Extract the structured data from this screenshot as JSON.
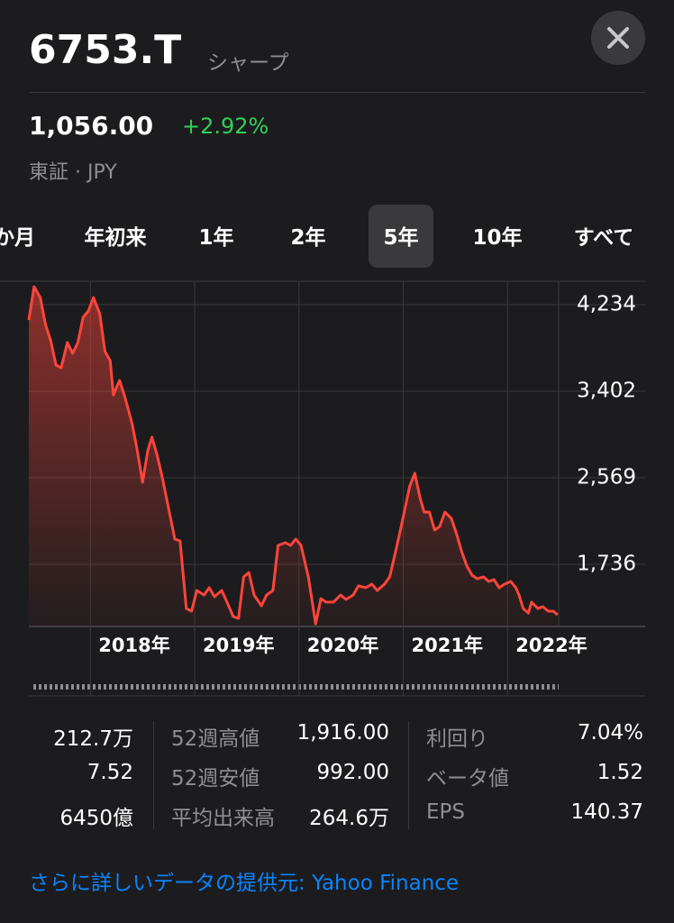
{
  "header": {
    "symbol": "6753.T",
    "name": "シャープ",
    "price": "1,056.00",
    "change": "+2.92%",
    "exchange": "東証 · JPY"
  },
  "tabs": [
    "か月",
    "年初来",
    "1年",
    "2年",
    "5年",
    "10年",
    "すべて"
  ],
  "chart_data": {
    "type": "line",
    "color": "#ff453a",
    "x": [
      2017.41,
      2017.46,
      2017.52,
      2017.57,
      2017.62,
      2017.67,
      2017.72,
      2017.78,
      2017.83,
      2017.88,
      2017.93,
      2017.98,
      2018.03,
      2018.09,
      2018.14,
      2018.19,
      2018.22,
      2018.28,
      2018.33,
      2018.4,
      2018.45,
      2018.5,
      2018.55,
      2018.59,
      2018.64,
      2018.69,
      2018.76,
      2018.81,
      2018.86,
      2018.92,
      2018.97,
      2019.02,
      2019.09,
      2019.14,
      2019.19,
      2019.26,
      2019.31,
      2019.37,
      2019.42,
      2019.47,
      2019.52,
      2019.57,
      2019.64,
      2019.69,
      2019.75,
      2019.8,
      2019.87,
      2019.92,
      2019.97,
      2020.02,
      2020.09,
      2020.16,
      2020.21,
      2020.26,
      2020.33,
      2020.4,
      2020.45,
      2020.52,
      2020.57,
      2020.64,
      2020.7,
      2020.75,
      2020.82,
      2020.87,
      2020.94,
      2021.01,
      2021.06,
      2021.11,
      2021.16,
      2021.2,
      2021.25,
      2021.3,
      2021.35,
      2021.4,
      2021.46,
      2021.51,
      2021.56,
      2021.61,
      2021.66,
      2021.71,
      2021.77,
      2021.82,
      2021.87,
      2021.92,
      2021.97,
      2022.03,
      2022.08,
      2022.11,
      2022.15,
      2022.2,
      2022.23,
      2022.29,
      2022.34,
      2022.39,
      2022.44,
      2022.48
    ],
    "series": [
      {
        "values": [
          4086,
          4408,
          4303,
          4043,
          3887,
          3653,
          3627,
          3870,
          3765,
          3870,
          4113,
          4173,
          4303,
          4147,
          3783,
          3696,
          3366,
          3505,
          3349,
          3089,
          2828,
          2525,
          2828,
          2959,
          2785,
          2568,
          2221,
          1978,
          1961,
          1310,
          1284,
          1483,
          1440,
          1510,
          1423,
          1483,
          1371,
          1232,
          1214,
          1614,
          1657,
          1440,
          1336,
          1440,
          1483,
          1917,
          1943,
          1917,
          1978,
          1917,
          1614,
          1162,
          1405,
          1371,
          1371,
          1440,
          1397,
          1440,
          1527,
          1510,
          1544,
          1483,
          1544,
          1614,
          1917,
          2238,
          2481,
          2611,
          2377,
          2238,
          2238,
          2065,
          2099,
          2238,
          2178,
          2030,
          1857,
          1718,
          1631,
          1596,
          1614,
          1570,
          1588,
          1510,
          1544,
          1570,
          1510,
          1440,
          1310,
          1266,
          1371,
          1310,
          1327,
          1284,
          1284,
          1249
        ]
      }
    ],
    "xlim": [
      2017.41,
      2022.49
    ],
    "ylim": [
      1137,
      4460
    ],
    "xticks": [
      {
        "value": 2018,
        "label": "2018年"
      },
      {
        "value": 2019,
        "label": "2019年"
      },
      {
        "value": 2020,
        "label": "2020年"
      },
      {
        "value": 2021,
        "label": "2021年"
      },
      {
        "value": 2022,
        "label": "2022年"
      }
    ],
    "yticks": [
      {
        "value": 4234,
        "label": "4,234"
      },
      {
        "value": 3402,
        "label": "3,402"
      },
      {
        "value": 2569,
        "label": "2,569"
      },
      {
        "value": 1736,
        "label": "1,736"
      }
    ],
    "grid": true
  },
  "stats": [
    {
      "values": [
        "212.7万",
        "7.52",
        "6450億"
      ]
    },
    {
      "labels": [
        "52週高値",
        "52週安値",
        "平均出来高"
      ],
      "values": [
        "1,916.00",
        "992.00",
        "264.6万"
      ]
    },
    {
      "labels": [
        "利回り",
        "ベータ値",
        "EPS"
      ],
      "values": [
        "7.04%",
        "1.52",
        "140.37"
      ]
    }
  ],
  "footer": {
    "prefix": "さらに詳しいデータの提供元:",
    "source": "Yahoo Finance"
  }
}
